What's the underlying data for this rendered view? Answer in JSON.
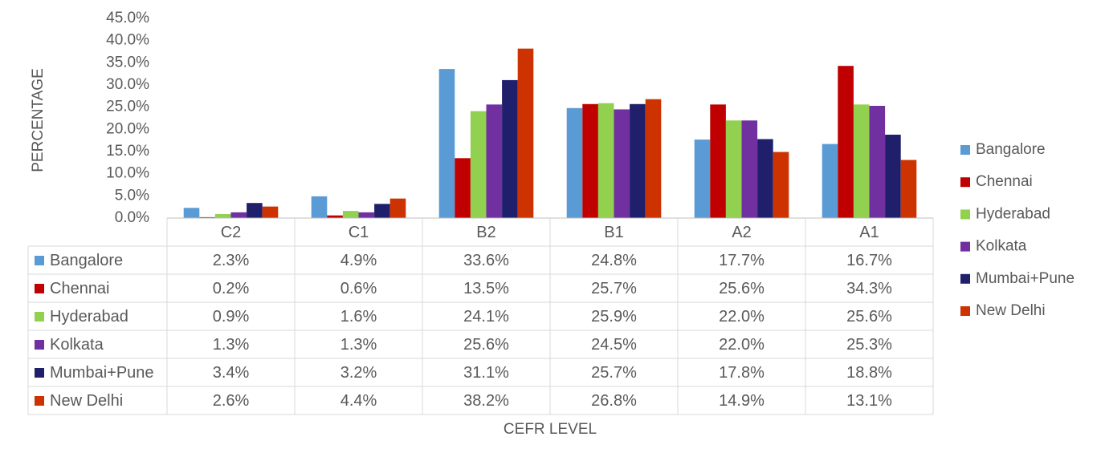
{
  "chart_data": {
    "type": "bar",
    "categories": [
      "C2",
      "C1",
      "B2",
      "B1",
      "A2",
      "A1"
    ],
    "series": [
      {
        "name": "Bangalore",
        "color": "#5B9BD5",
        "values": [
          2.3,
          4.9,
          33.6,
          24.8,
          17.7,
          16.7
        ],
        "labels": [
          "2.3%",
          "4.9%",
          "33.6%",
          "24.8%",
          "17.7%",
          "16.7%"
        ]
      },
      {
        "name": "Chennai",
        "color": "#C00000",
        "values": [
          0.2,
          0.6,
          13.5,
          25.7,
          25.6,
          34.3
        ],
        "labels": [
          "0.2%",
          "0.6%",
          "13.5%",
          "25.7%",
          "25.6%",
          "34.3%"
        ]
      },
      {
        "name": "Hyderabad",
        "color": "#92D050",
        "values": [
          0.9,
          1.6,
          24.1,
          25.9,
          22.0,
          25.6
        ],
        "labels": [
          "0.9%",
          "1.6%",
          "24.1%",
          "25.9%",
          "22.0%",
          "25.6%"
        ]
      },
      {
        "name": "Kolkata",
        "color": "#7030A0",
        "values": [
          1.3,
          1.3,
          25.6,
          24.5,
          22.0,
          25.3
        ],
        "labels": [
          "1.3%",
          "1.3%",
          "25.6%",
          "24.5%",
          "22.0%",
          "25.3%"
        ]
      },
      {
        "name": "Mumbai+Pune",
        "color": "#1F1F6B",
        "values": [
          3.4,
          3.2,
          31.1,
          25.7,
          17.8,
          18.8
        ],
        "labels": [
          "3.4%",
          "3.2%",
          "31.1%",
          "25.7%",
          "17.8%",
          "18.8%"
        ]
      },
      {
        "name": "New Delhi",
        "color": "#CC3300",
        "values": [
          2.6,
          4.4,
          38.2,
          26.8,
          14.9,
          13.1
        ],
        "labels": [
          "2.6%",
          "4.4%",
          "38.2%",
          "26.8%",
          "14.9%",
          "13.1%"
        ]
      }
    ],
    "ylim": [
      0,
      45
    ],
    "yticks": [
      "0.0%",
      "5.0%",
      "10.0%",
      "15.0%",
      "20.0%",
      "25.0%",
      "30.0%",
      "35.0%",
      "40.0%",
      "45.0%"
    ],
    "xlabel": "CEFR LEVEL",
    "ylabel": "PERCENTAGE",
    "legend_position": "right",
    "grid": false,
    "data_table": true
  }
}
